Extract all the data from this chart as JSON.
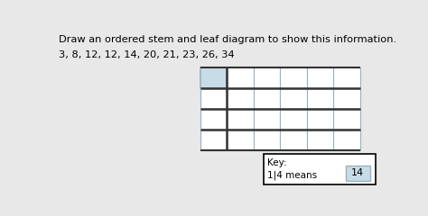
{
  "title": "Draw an ordered stem and leaf diagram to show this information.",
  "data_label": "3, 8, 12, 12, 14, 20, 21, 23, 26, 34",
  "n_rows": 4,
  "n_leaf_cols": 5,
  "key_value": "14",
  "bg_color": "#e8e8e8",
  "highlight_color": "#c8dce8",
  "cell_border_color": "#9ab0c0",
  "separator_color": "#333333",
  "key_box_color": "#c8dce8"
}
